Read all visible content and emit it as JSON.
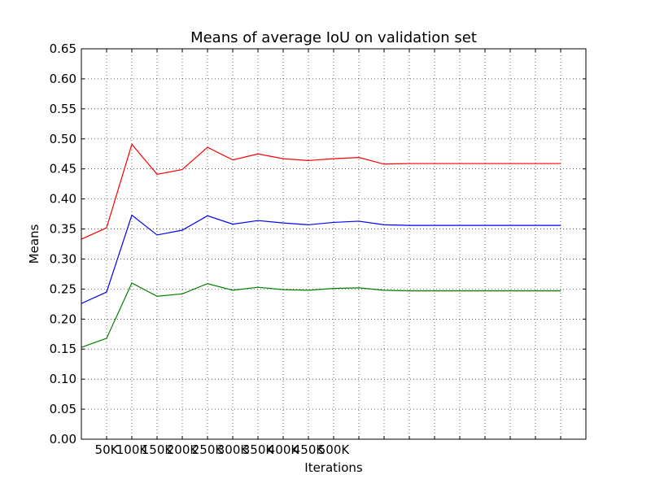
{
  "chart_data": {
    "type": "line",
    "title": "Means of average IoU on validation set",
    "xlabel": "Iterations",
    "ylabel": "Means",
    "xlim": [
      0,
      20
    ],
    "ylim": [
      0,
      0.65
    ],
    "yticks": [
      0.0,
      0.05,
      0.1,
      0.15,
      0.2,
      0.25,
      0.3,
      0.35,
      0.4,
      0.45,
      0.5,
      0.55,
      0.6,
      0.65
    ],
    "ytick_labels": [
      "0.00",
      "0.05",
      "0.10",
      "0.15",
      "0.20",
      "0.25",
      "0.30",
      "0.35",
      "0.40",
      "0.45",
      "0.50",
      "0.55",
      "0.60",
      "0.65"
    ],
    "xticks": [
      1,
      2,
      3,
      4,
      5,
      6,
      7,
      8,
      9,
      10,
      11,
      12,
      13,
      14,
      15,
      16,
      17,
      18,
      19
    ],
    "xtick_labels": [
      "50K",
      "100K",
      "150K",
      "200K",
      "250K",
      "300K",
      "350K",
      "400K",
      "450K",
      "500K",
      "",
      "",
      "",
      "",
      "",
      "",
      "",
      "",
      ""
    ],
    "grid": true,
    "x": [
      0,
      1,
      2,
      3,
      4,
      5,
      6,
      7,
      8,
      9,
      10,
      11,
      12,
      13,
      14,
      15,
      16,
      17,
      18,
      19
    ],
    "series": [
      {
        "color": "#ff0000",
        "values": [
          0.333,
          0.352,
          0.491,
          0.441,
          0.449,
          0.486,
          0.465,
          0.475,
          0.467,
          0.464,
          0.467,
          0.469,
          0.458,
          0.459,
          0.459,
          0.459,
          0.459,
          0.459,
          0.459,
          0.459
        ]
      },
      {
        "color": "#0000ff",
        "values": [
          0.226,
          0.245,
          0.373,
          0.34,
          0.348,
          0.372,
          0.358,
          0.364,
          0.36,
          0.357,
          0.361,
          0.363,
          0.357,
          0.356,
          0.356,
          0.356,
          0.356,
          0.356,
          0.356,
          0.356
        ]
      },
      {
        "color": "#008000",
        "values": [
          0.153,
          0.168,
          0.26,
          0.238,
          0.242,
          0.259,
          0.248,
          0.253,
          0.249,
          0.248,
          0.251,
          0.252,
          0.248,
          0.247,
          0.247,
          0.247,
          0.247,
          0.247,
          0.247,
          0.247
        ]
      }
    ]
  }
}
